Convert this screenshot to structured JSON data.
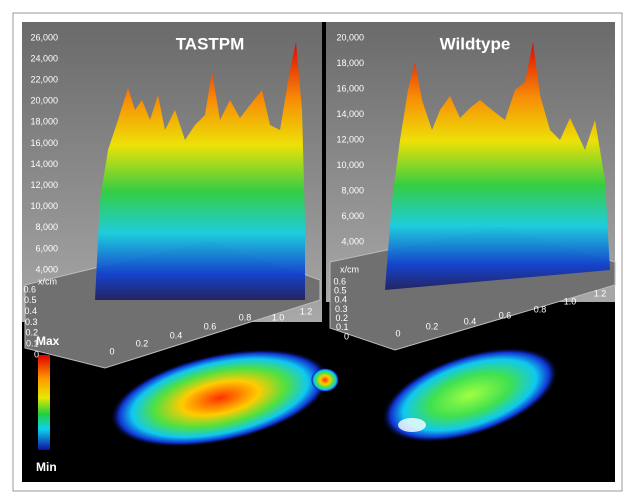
{
  "panels": [
    {
      "title": "TASTPM",
      "z_ticks": [
        "26,000",
        "24,000",
        "22,000",
        "20,000",
        "18,000",
        "16,000",
        "14,000",
        "12,000",
        "10,000",
        "8,000",
        "6,000",
        "4,000"
      ],
      "depth_label": "x/cm",
      "depth_ticks": [
        "0.6",
        "0.5",
        "0.4",
        "0.3",
        "0.2",
        "0.1",
        "0"
      ],
      "x_ticks": [
        "0",
        "0.2",
        "0.4",
        "0.6",
        "0.8",
        "1.0",
        "1.2"
      ]
    },
    {
      "title": "Wildtype",
      "z_ticks": [
        "20,000",
        "18,000",
        "16,000",
        "14,000",
        "12,000",
        "10,000",
        "8,000",
        "6,000",
        "4,000"
      ],
      "depth_label": "x/cm",
      "depth_ticks": [
        "0.6",
        "0.5",
        "0.4",
        "0.3",
        "0.2",
        "0.1",
        "0"
      ],
      "x_ticks": [
        "0",
        "0.2",
        "0.4",
        "0.6",
        "0.8",
        "1.0",
        "1.2"
      ]
    }
  ],
  "colorbar": {
    "max": "Max",
    "min": "Min"
  }
}
